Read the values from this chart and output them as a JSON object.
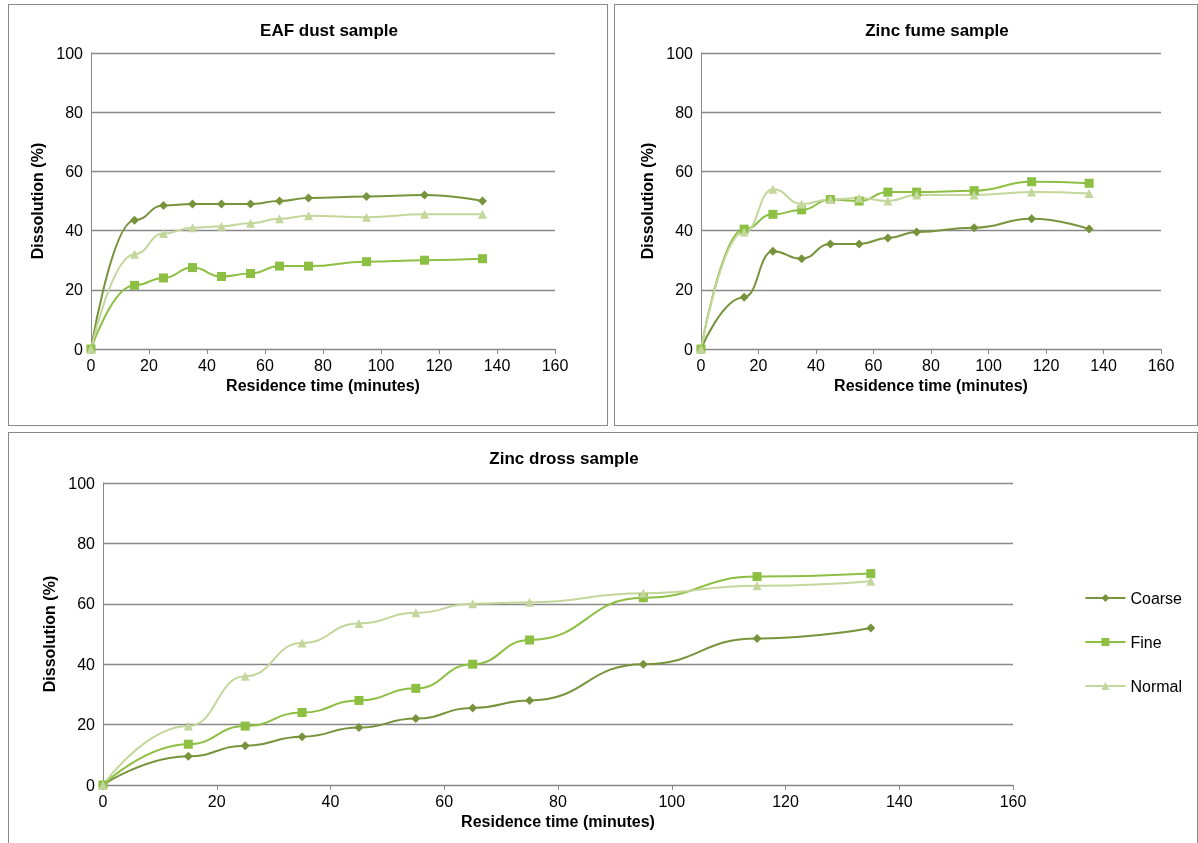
{
  "chart_data": [
    {
      "type": "line",
      "title": "EAF dust sample",
      "xlabel": "Residence time (minutes)",
      "ylabel": "Dissolution (%)",
      "x": [
        0,
        15,
        25,
        35,
        45,
        55,
        65,
        75,
        95,
        115,
        135
      ],
      "xlim": [
        0,
        160
      ],
      "xticks": [
        0,
        20,
        40,
        60,
        80,
        100,
        120,
        140,
        160
      ],
      "ylim": [
        0,
        100
      ],
      "yticks": [
        0,
        20,
        40,
        60,
        80,
        100
      ],
      "grid": "y",
      "legend": false,
      "series": [
        {
          "color": "#77933c",
          "marker": "diamond",
          "values": [
            0,
            43.5,
            48.5,
            49,
            49,
            49,
            50,
            51,
            51.5,
            52,
            50
          ]
        },
        {
          "color": "#8cbf42",
          "marker": "square",
          "values": [
            0,
            21.5,
            24,
            27.5,
            24.5,
            25.5,
            28,
            28,
            29.5,
            30,
            30.5
          ]
        },
        {
          "color": "#c3d69b",
          "marker": "triangle",
          "values": [
            0,
            32,
            39,
            41,
            41.5,
            42.5,
            44,
            45,
            44.5,
            45.5,
            45.5
          ]
        }
      ]
    },
    {
      "type": "line",
      "title": "Zinc fume sample",
      "xlabel": "Residence time (minutes)",
      "ylabel": "Dissolution (%)",
      "x": [
        0,
        15,
        25,
        35,
        45,
        55,
        65,
        75,
        95,
        115,
        135
      ],
      "xlim": [
        0,
        160
      ],
      "xticks": [
        0,
        20,
        40,
        60,
        80,
        100,
        120,
        140,
        160
      ],
      "ylim": [
        0,
        100
      ],
      "yticks": [
        0,
        20,
        40,
        60,
        80,
        100
      ],
      "grid": "y",
      "legend": false,
      "series": [
        {
          "color": "#77933c",
          "marker": "diamond",
          "values": [
            0,
            17.5,
            33,
            30.5,
            35.5,
            35.5,
            37.5,
            39.5,
            41,
            44,
            40.5
          ]
        },
        {
          "color": "#8cbf42",
          "marker": "square",
          "values": [
            0,
            40.5,
            45.5,
            47,
            50.5,
            50,
            53,
            53,
            53.5,
            56.5,
            56
          ]
        },
        {
          "color": "#c3d69b",
          "marker": "triangle",
          "values": [
            0,
            39.5,
            54,
            49,
            50.5,
            51,
            50,
            52,
            52,
            53,
            52.5
          ]
        }
      ]
    },
    {
      "type": "line",
      "title": "Zinc dross sample",
      "xlabel": "Residence time (minutes)",
      "ylabel": "Dissolution (%)",
      "x": [
        0,
        15,
        25,
        35,
        45,
        55,
        65,
        75,
        95,
        115,
        135
      ],
      "xlim": [
        0,
        160
      ],
      "xticks": [
        0,
        20,
        40,
        60,
        80,
        100,
        120,
        140,
        160
      ],
      "ylim": [
        0,
        100
      ],
      "yticks": [
        0,
        20,
        40,
        60,
        80,
        100
      ],
      "grid": "y",
      "legend": "right",
      "series": [
        {
          "name": "Coarse",
          "color": "#77933c",
          "marker": "diamond",
          "values": [
            0,
            9.5,
            13,
            16,
            19,
            22,
            25.5,
            28,
            40,
            48.5,
            52
          ]
        },
        {
          "name": "Fine",
          "color": "#8cbf42",
          "marker": "square",
          "values": [
            0,
            13.5,
            19.5,
            24,
            28,
            32,
            40,
            48,
            62,
            69,
            70
          ]
        },
        {
          "name": "Normal",
          "color": "#c3d69b",
          "marker": "triangle",
          "values": [
            0,
            19.5,
            36,
            47,
            53.5,
            57,
            60,
            60.5,
            63.5,
            66,
            67.5
          ]
        }
      ]
    }
  ]
}
